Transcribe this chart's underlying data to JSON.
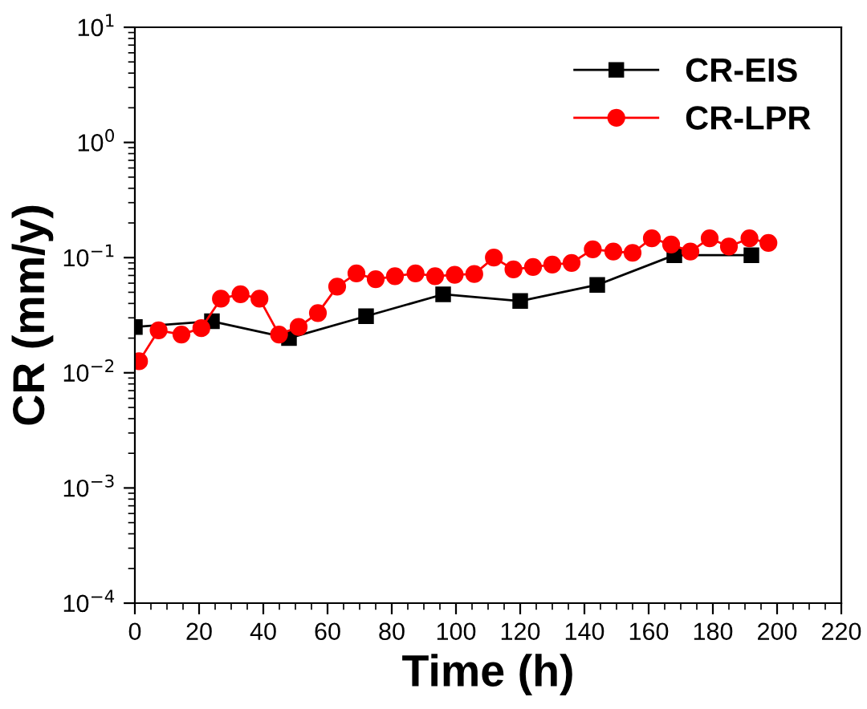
{
  "chart_data": {
    "type": "line",
    "xlabel": "Time (h)",
    "ylabel": "CR (mm/y)",
    "log": "y",
    "xlim": [
      0,
      220
    ],
    "xticks": [
      0,
      20,
      40,
      60,
      80,
      100,
      120,
      140,
      160,
      180,
      200,
      220
    ],
    "ylim": [
      0.0001,
      10
    ],
    "yticks": [
      {
        "value": 0.0001,
        "label": "10$^{−4}$"
      },
      {
        "value": 0.001,
        "label": "10$^{−3}$"
      },
      {
        "value": 0.01,
        "label": "10$^{−2}$"
      },
      {
        "value": 0.1,
        "label": "10$^{−1}$"
      },
      {
        "value": 1,
        "label": "10$^{0}$"
      },
      {
        "value": 10,
        "label": "10$^{1}$"
      }
    ],
    "legend": "top right",
    "grid": false,
    "series": [
      {
        "name": "CR-EIS",
        "color": "#000000",
        "marker": "square",
        "x": [
          0,
          24,
          48,
          72,
          96,
          120,
          144,
          168,
          192
        ],
        "values": [
          0.025,
          0.028,
          0.02,
          0.031,
          0.048,
          0.042,
          0.058,
          0.105,
          0.105
        ]
      },
      {
        "name": "CR-LPR",
        "color": "#ff0000",
        "marker": "circle",
        "x": [
          1.3,
          7.4,
          14.5,
          20.7,
          26.8,
          32.9,
          38.8,
          44.9,
          51,
          57,
          63,
          69,
          75,
          81,
          87.4,
          93.5,
          99.6,
          105.7,
          111.8,
          117.9,
          124,
          130,
          136,
          142.6,
          149,
          155,
          161,
          167,
          173,
          179,
          185,
          191.4,
          197.3
        ],
        "values": [
          0.0126,
          0.0234,
          0.0215,
          0.0244,
          0.044,
          0.048,
          0.044,
          0.0215,
          0.025,
          0.033,
          0.056,
          0.073,
          0.065,
          0.069,
          0.073,
          0.069,
          0.071,
          0.072,
          0.1,
          0.079,
          0.083,
          0.087,
          0.09,
          0.118,
          0.113,
          0.11,
          0.147,
          0.13,
          0.113,
          0.147,
          0.125,
          0.147,
          0.134
        ]
      }
    ]
  }
}
